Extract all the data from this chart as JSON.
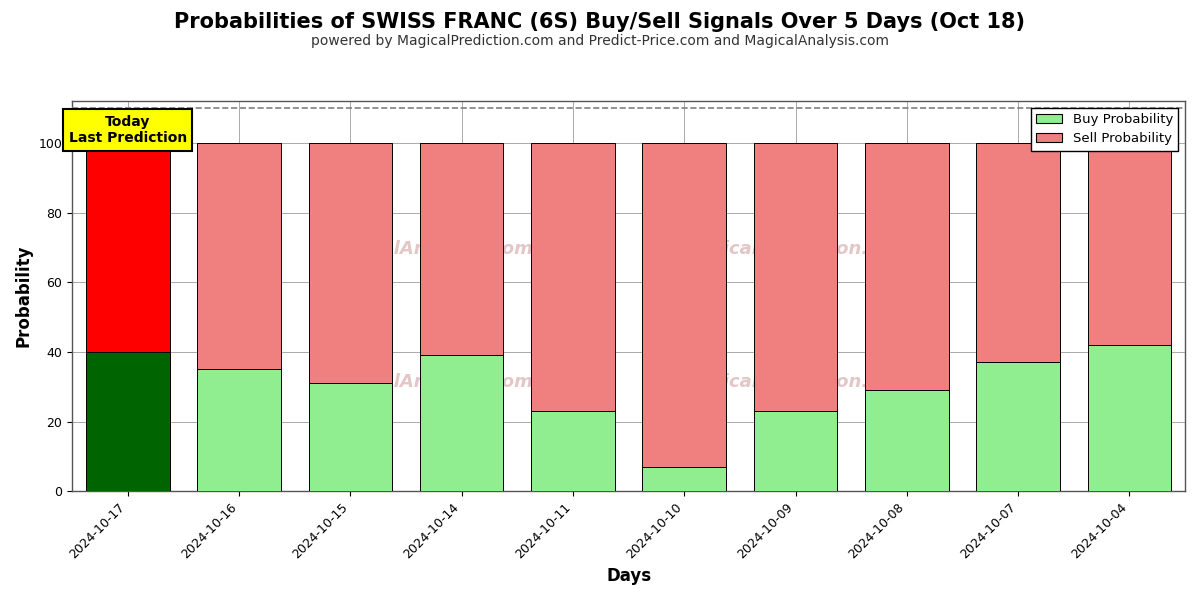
{
  "title": "Probabilities of SWISS FRANC (6S) Buy/Sell Signals Over 5 Days (Oct 18)",
  "subtitle": "powered by MagicalPrediction.com and Predict-Price.com and MagicalAnalysis.com",
  "xlabel": "Days",
  "ylabel": "Probability",
  "categories": [
    "2024-10-17",
    "2024-10-16",
    "2024-10-15",
    "2024-10-14",
    "2024-10-11",
    "2024-10-10",
    "2024-10-09",
    "2024-10-08",
    "2024-10-07",
    "2024-10-04"
  ],
  "buy_values": [
    40,
    35,
    31,
    39,
    23,
    7,
    23,
    29,
    37,
    42
  ],
  "sell_values": [
    60,
    65,
    69,
    61,
    77,
    93,
    77,
    71,
    63,
    58
  ],
  "buy_color_first": "#006400",
  "buy_color_rest": "#90EE90",
  "sell_color_first": "#FF0000",
  "sell_color_rest": "#F08080",
  "bar_edge_color": "#000000",
  "ylim": [
    0,
    112
  ],
  "yticks": [
    0,
    20,
    40,
    60,
    80,
    100
  ],
  "dashed_line_y": 110,
  "legend_buy_label": "Buy Probability",
  "legend_sell_label": "Sell Probability",
  "today_box_text": "Today\nLast Prediction",
  "today_box_facecolor": "#FFFF00",
  "title_fontsize": 15,
  "subtitle_fontsize": 10,
  "axis_label_fontsize": 12,
  "tick_fontsize": 9,
  "background_color": "#ffffff",
  "grid_color": "#aaaaaa"
}
